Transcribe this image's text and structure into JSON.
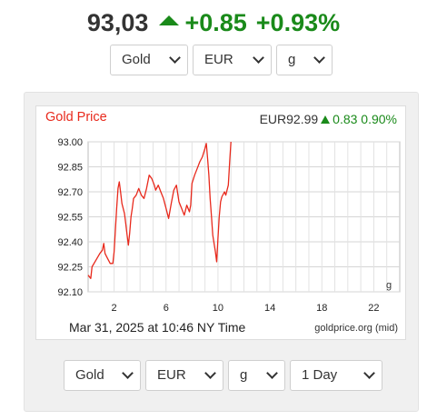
{
  "header": {
    "price": "93,03",
    "change": "+0.85",
    "change_pct": "+0.93%",
    "color_up": "#1a8a1a"
  },
  "top_selects": {
    "metal": "Gold",
    "currency": "EUR",
    "unit": "g"
  },
  "chart": {
    "title": "Gold Price",
    "current_price": "EUR92.99",
    "change": "0.83",
    "change_pct": "0.90%",
    "date_text": "Mar 31, 2025 at 10:46 NY Time",
    "source_text": "goldprice.org (mid)",
    "unit_label": "g",
    "line_color": "#e8291c"
  },
  "bottom_selects": {
    "metal": "Gold",
    "currency": "EUR",
    "unit": "g",
    "range": "1 Day"
  },
  "chart_data": {
    "type": "line",
    "title": "Gold Price",
    "xlabel": "",
    "ylabel": "",
    "ylim": [
      92.1,
      93.0
    ],
    "xlim": [
      0,
      24
    ],
    "x_ticks": [
      "2",
      "6",
      "10",
      "14",
      "18",
      "22"
    ],
    "y_ticks": [
      "93.00",
      "92.85",
      "92.70",
      "92.55",
      "92.40",
      "92.25",
      "92.10"
    ],
    "grid": true,
    "series": [
      {
        "values": [
          [
            0.0,
            92.2
          ],
          [
            0.2,
            92.18
          ],
          [
            0.3,
            92.25
          ],
          [
            0.6,
            92.29
          ],
          [
            0.9,
            92.33
          ],
          [
            1.1,
            92.35
          ],
          [
            1.2,
            92.39
          ],
          [
            1.3,
            92.33
          ],
          [
            1.5,
            92.3
          ],
          [
            1.7,
            92.27
          ],
          [
            1.9,
            92.27
          ],
          [
            2.0,
            92.34
          ],
          [
            2.1,
            92.47
          ],
          [
            2.2,
            92.6
          ],
          [
            2.3,
            92.72
          ],
          [
            2.4,
            92.76
          ],
          [
            2.5,
            92.7
          ],
          [
            2.6,
            92.63
          ],
          [
            2.8,
            92.57
          ],
          [
            2.9,
            92.51
          ],
          [
            3.0,
            92.44
          ],
          [
            3.1,
            92.38
          ],
          [
            3.2,
            92.45
          ],
          [
            3.3,
            92.55
          ],
          [
            3.4,
            92.6
          ],
          [
            3.5,
            92.66
          ],
          [
            3.7,
            92.68
          ],
          [
            3.9,
            92.72
          ],
          [
            4.1,
            92.68
          ],
          [
            4.3,
            92.66
          ],
          [
            4.5,
            92.72
          ],
          [
            4.7,
            92.8
          ],
          [
            4.9,
            92.78
          ],
          [
            5.1,
            92.74
          ],
          [
            5.2,
            92.71
          ],
          [
            5.4,
            92.74
          ],
          [
            5.6,
            92.7
          ],
          [
            5.8,
            92.66
          ],
          [
            6.0,
            92.6
          ],
          [
            6.2,
            92.54
          ],
          [
            6.4,
            92.63
          ],
          [
            6.6,
            92.71
          ],
          [
            6.8,
            92.74
          ],
          [
            7.0,
            92.64
          ],
          [
            7.2,
            92.6
          ],
          [
            7.4,
            92.56
          ],
          [
            7.6,
            92.62
          ],
          [
            7.8,
            92.58
          ],
          [
            7.9,
            92.62
          ],
          [
            8.0,
            92.75
          ],
          [
            8.2,
            92.8
          ],
          [
            8.4,
            92.84
          ],
          [
            8.6,
            92.88
          ],
          [
            8.8,
            92.91
          ],
          [
            9.0,
            92.96
          ],
          [
            9.1,
            92.99
          ],
          [
            9.2,
            92.9
          ],
          [
            9.3,
            92.8
          ],
          [
            9.4,
            92.66
          ],
          [
            9.5,
            92.55
          ],
          [
            9.6,
            92.44
          ],
          [
            9.8,
            92.34
          ],
          [
            9.9,
            92.28
          ],
          [
            10.0,
            92.42
          ],
          [
            10.1,
            92.55
          ],
          [
            10.2,
            92.64
          ],
          [
            10.3,
            92.67
          ],
          [
            10.5,
            92.7
          ],
          [
            10.6,
            92.68
          ],
          [
            10.8,
            92.74
          ],
          [
            10.9,
            92.88
          ],
          [
            11.0,
            93.0
          ]
        ]
      }
    ]
  }
}
